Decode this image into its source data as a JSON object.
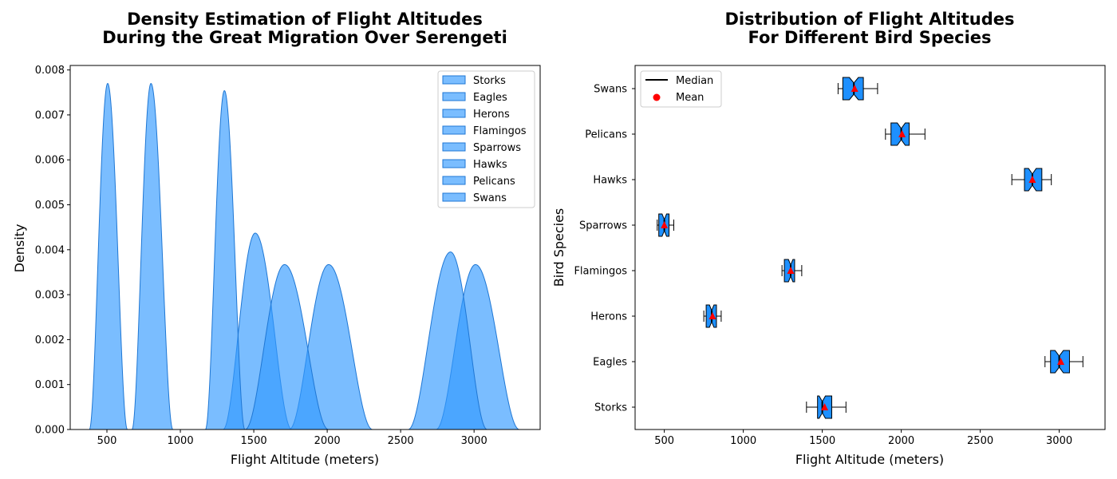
{
  "chart_data": [
    {
      "type": "area",
      "title_line1": "Density Estimation of Flight Altitudes",
      "title_line2": "During the Great Migration Over Serengeti",
      "xlabel": "Flight Altitude (meters)",
      "ylabel": "Density",
      "xlim": [
        250,
        3450
      ],
      "ylim": [
        0,
        0.0081
      ],
      "xticks": [
        "500",
        "1000",
        "1500",
        "2000",
        "2500",
        "3000"
      ],
      "yticks": [
        "0.000",
        "0.001",
        "0.002",
        "0.003",
        "0.004",
        "0.005",
        "0.006",
        "0.007",
        "0.008"
      ],
      "fill_color": "#3399ff",
      "edge_color": "#1f77d4",
      "legend_position": "top-right",
      "series": [
        {
          "name": "Storks",
          "center": 1510,
          "peak": 0.00437,
          "x_range": [
            1290,
            1760
          ]
        },
        {
          "name": "Eagles",
          "center": 3010,
          "peak": 0.00367,
          "x_range": [
            2740,
            3310
          ]
        },
        {
          "name": "Herons",
          "center": 800,
          "peak": 0.0077,
          "x_range": [
            670,
            950
          ]
        },
        {
          "name": "Flamingos",
          "center": 1300,
          "peak": 0.00754,
          "x_range": [
            1170,
            1440
          ]
        },
        {
          "name": "Sparrows",
          "center": 505,
          "peak": 0.0077,
          "x_range": [
            380,
            640
          ]
        },
        {
          "name": "Hawks",
          "center": 2840,
          "peak": 0.00395,
          "x_range": [
            2550,
            3090
          ]
        },
        {
          "name": "Pelicans",
          "center": 2010,
          "peak": 0.00367,
          "x_range": [
            1740,
            2310
          ]
        },
        {
          "name": "Swans",
          "center": 1710,
          "peak": 0.00367,
          "x_range": [
            1440,
            2010
          ]
        }
      ]
    },
    {
      "type": "box",
      "title_line1": "Distribution of Flight Altitudes",
      "title_line2": "For Different Bird Species",
      "xlabel": "Flight Altitude (meters)",
      "ylabel": "Bird Species",
      "xlim": [
        315,
        3290
      ],
      "xticks": [
        "500",
        "1000",
        "1500",
        "2000",
        "2500",
        "3000"
      ],
      "box_color": "#1e90ff",
      "mean_color": "#ff0000",
      "legend_position": "top-left",
      "legend": [
        "Median",
        "Mean"
      ],
      "categories": [
        "Storks",
        "Eagles",
        "Herons",
        "Flamingos",
        "Sparrows",
        "Hawks",
        "Pelicans",
        "Swans"
      ],
      "boxes": [
        {
          "name": "Storks",
          "whislo": 1400,
          "q1": 1470,
          "med": 1500,
          "q3": 1560,
          "whishi": 1650,
          "mean": 1515
        },
        {
          "name": "Eagles",
          "whislo": 2910,
          "q1": 2945,
          "med": 3000,
          "q3": 3065,
          "whishi": 3150,
          "mean": 3010
        },
        {
          "name": "Herons",
          "whislo": 750,
          "q1": 765,
          "med": 800,
          "q3": 830,
          "whishi": 860,
          "mean": 805
        },
        {
          "name": "Flamingos",
          "whislo": 1245,
          "q1": 1260,
          "med": 1300,
          "q3": 1325,
          "whishi": 1370,
          "mean": 1300
        },
        {
          "name": "Sparrows",
          "whislo": 455,
          "q1": 465,
          "med": 500,
          "q3": 530,
          "whishi": 560,
          "mean": 500
        },
        {
          "name": "Hawks",
          "whislo": 2700,
          "q1": 2780,
          "med": 2830,
          "q3": 2890,
          "whishi": 2950,
          "mean": 2830
        },
        {
          "name": "Pelicans",
          "whislo": 1900,
          "q1": 1935,
          "med": 2000,
          "q3": 2050,
          "whishi": 2150,
          "mean": 2005
        },
        {
          "name": "Swans",
          "whislo": 1600,
          "q1": 1630,
          "med": 1700,
          "q3": 1760,
          "whishi": 1850,
          "mean": 1705
        }
      ]
    }
  ]
}
